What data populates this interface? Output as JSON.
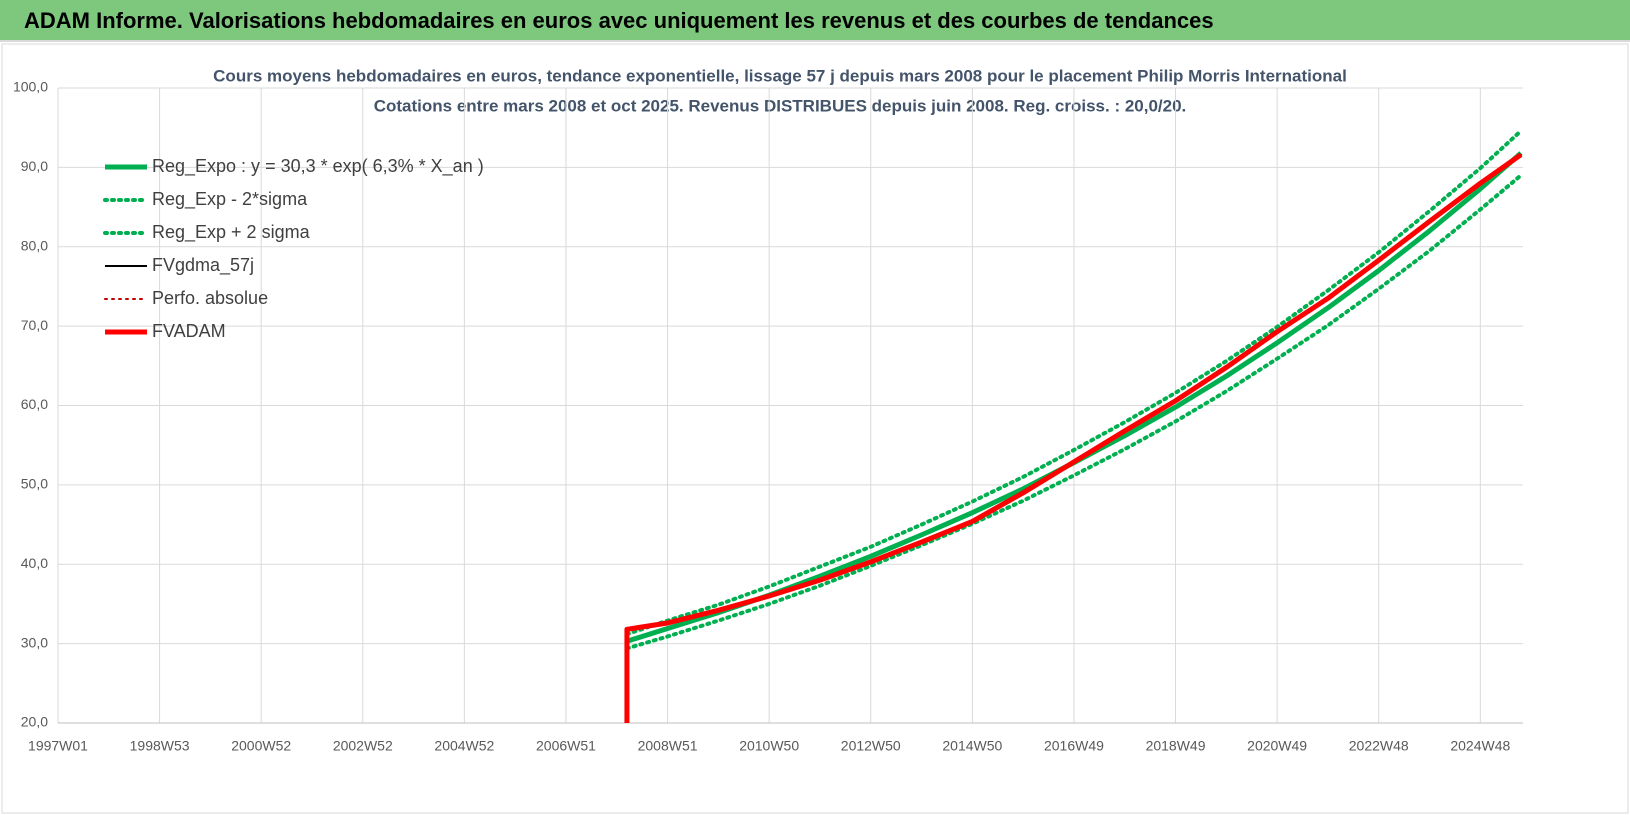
{
  "chart_data": {
    "type": "line",
    "header": "ADAM Informe. Valorisations hebdomadaires en euros avec uniquement les revenus et des courbes de tendances",
    "title": "Cours moyens hebdomadaires en euros, tendance exponentielle, lissage 57 j depuis mars 2008 pour le placement Philip Morris International",
    "subtitle": "Cotations entre mars 2008 et oct 2025.  Revenus DISTRIBUES depuis juin 2008. Reg. croiss. : 20,0/20.",
    "x": [
      2008.2,
      2008.2,
      2009,
      2010,
      2011,
      2012,
      2013,
      2014,
      2015,
      2016,
      2017,
      2018,
      2019,
      2020,
      2021,
      2022,
      2023,
      2024,
      2025,
      2025.8
    ],
    "xlim": [
      1997,
      2025.84
    ],
    "xticks": [
      {
        "value": 1997,
        "label": "1997W01"
      },
      {
        "value": 1999,
        "label": "1998W53"
      },
      {
        "value": 2001,
        "label": "2000W52"
      },
      {
        "value": 2003,
        "label": "2002W52"
      },
      {
        "value": 2005,
        "label": "2004W52"
      },
      {
        "value": 2007,
        "label": "2006W51"
      },
      {
        "value": 2009,
        "label": "2008W51"
      },
      {
        "value": 2011,
        "label": "2010W50"
      },
      {
        "value": 2013,
        "label": "2012W50"
      },
      {
        "value": 2015,
        "label": "2014W50"
      },
      {
        "value": 2017,
        "label": "2016W49"
      },
      {
        "value": 2019,
        "label": "2018W49"
      },
      {
        "value": 2021,
        "label": "2020W49"
      },
      {
        "value": 2023,
        "label": "2022W48"
      },
      {
        "value": 2025,
        "label": "2024W48"
      }
    ],
    "ylim": [
      20,
      100
    ],
    "yticks": [
      {
        "value": 20,
        "label": "20,0"
      },
      {
        "value": 30,
        "label": "30,0"
      },
      {
        "value": 40,
        "label": "40,0"
      },
      {
        "value": 50,
        "label": "50,0"
      },
      {
        "value": 60,
        "label": "60,0"
      },
      {
        "value": 70,
        "label": "70,0"
      },
      {
        "value": 80,
        "label": "80,0"
      },
      {
        "value": 90,
        "label": "90,0"
      },
      {
        "value": 100,
        "label": "100,0"
      }
    ],
    "grid": true,
    "series": [
      {
        "name": "Reg_Expo : y = 30,3 * exp( 6,3% *  X_an )",
        "color": "#00b050",
        "style": "solid",
        "width": 5,
        "values": [
          null,
          30.3,
          31.9,
          33.9,
          36.1,
          38.5,
          41.0,
          43.7,
          46.5,
          49.5,
          52.8,
          56.2,
          59.8,
          63.7,
          67.9,
          72.3,
          77.0,
          82.0,
          87.3,
          91.8
        ]
      },
      {
        "name": "Reg_Exp - 2*sigma",
        "color": "#00b050",
        "style": "dotted",
        "width": 4,
        "values": [
          null,
          29.4,
          30.9,
          32.9,
          35.0,
          37.3,
          39.8,
          42.4,
          45.1,
          48.0,
          51.2,
          54.5,
          58.0,
          61.8,
          65.9,
          70.1,
          74.7,
          79.5,
          84.7,
          89.0
        ]
      },
      {
        "name": "Reg_Exp + 2 sigma",
        "color": "#00b050",
        "style": "dotted",
        "width": 4,
        "values": [
          null,
          31.2,
          32.9,
          34.9,
          37.2,
          39.7,
          42.2,
          45.0,
          47.9,
          51.0,
          54.4,
          57.9,
          61.6,
          65.6,
          69.9,
          74.5,
          79.3,
          84.5,
          89.9,
          94.6
        ]
      },
      {
        "name": "FVgdma_57j",
        "color": "#000000",
        "style": "solid",
        "width": 2,
        "values": [
          null,
          31.8,
          32.6,
          34.2,
          36.0,
          38.0,
          40.3,
          42.8,
          45.4,
          49.0,
          52.9,
          56.8,
          60.6,
          64.8,
          69.3,
          73.5,
          78.3,
          83.2,
          88.0,
          91.6
        ]
      },
      {
        "name": "Perfo. absolue",
        "color": "#c00000",
        "style": "dotted",
        "width": 2,
        "values": [
          null,
          31.8,
          32.6,
          34.2,
          36.0,
          38.0,
          40.3,
          42.8,
          45.4,
          49.0,
          52.9,
          56.8,
          60.6,
          64.8,
          69.3,
          73.5,
          78.3,
          83.2,
          88.0,
          91.6
        ]
      },
      {
        "name": "FVADAM",
        "color": "#ff0000",
        "style": "solid",
        "width": 5,
        "values": [
          20,
          31.8,
          32.6,
          34.2,
          36.0,
          38.0,
          40.3,
          42.8,
          45.4,
          49.0,
          52.9,
          56.8,
          60.6,
          64.8,
          69.3,
          73.5,
          78.3,
          83.2,
          88.0,
          91.6
        ]
      }
    ]
  }
}
